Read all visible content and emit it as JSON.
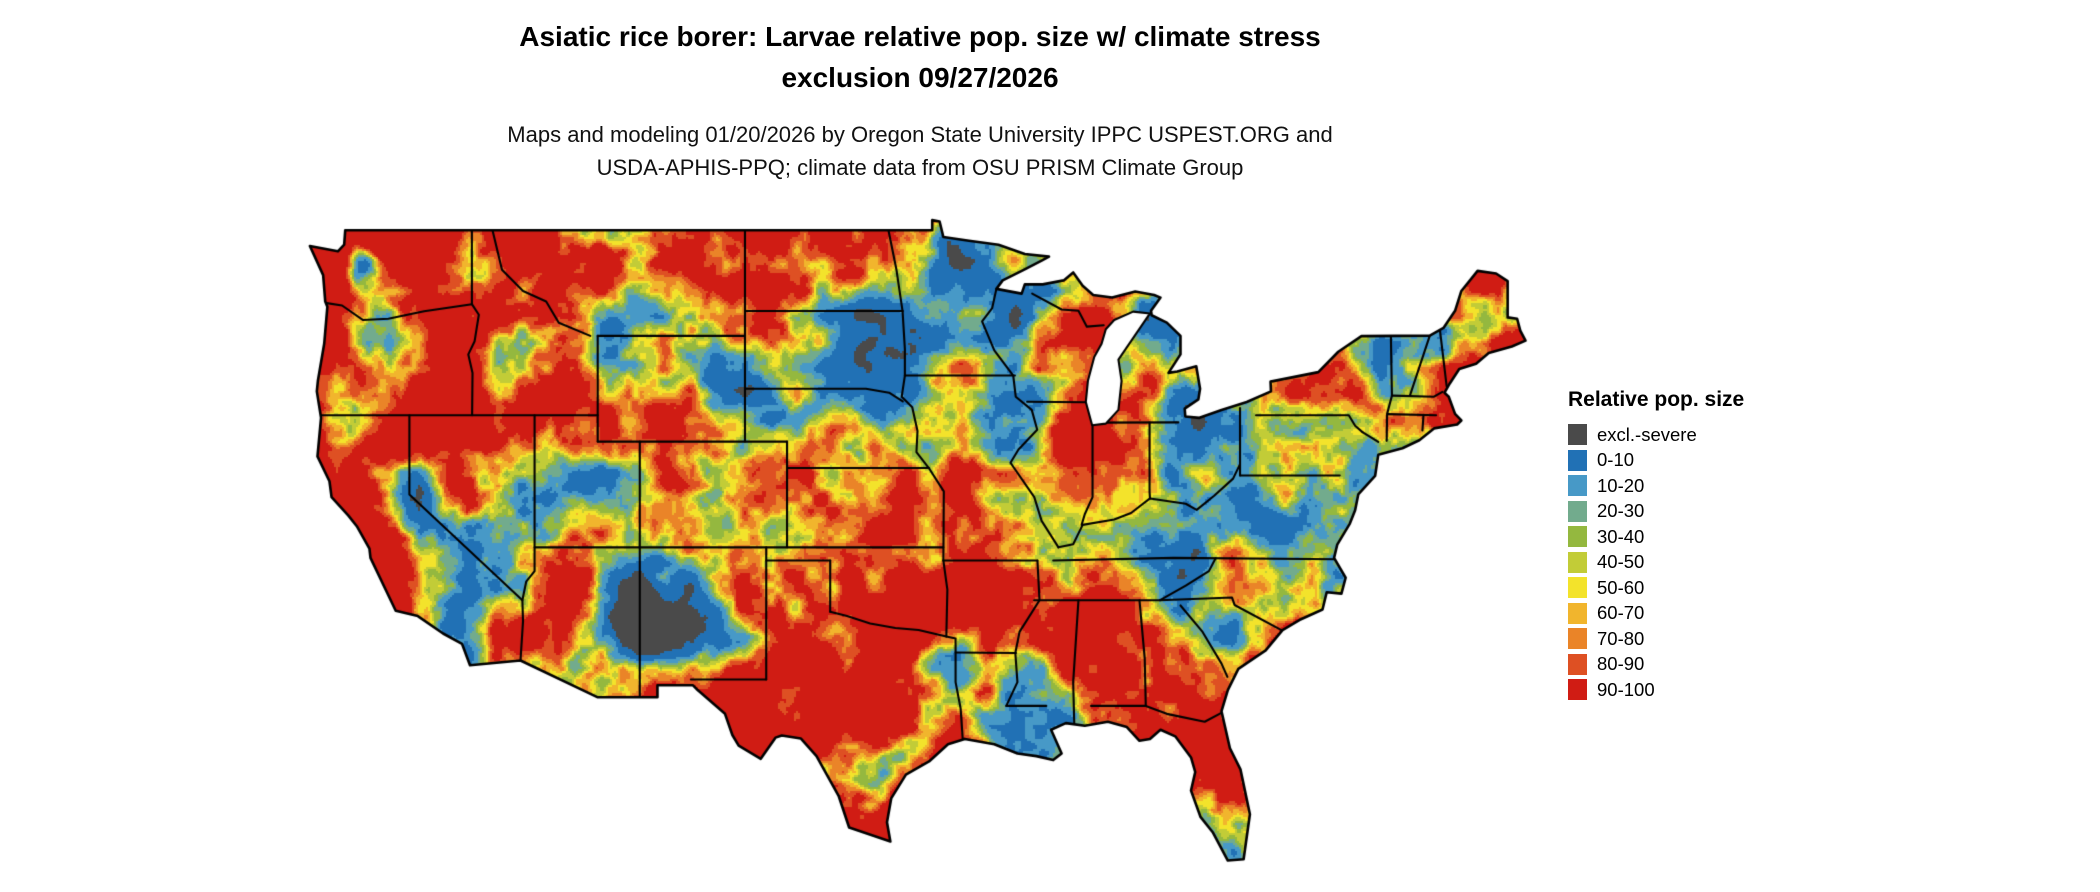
{
  "header": {
    "title_line1": "Asiatic rice borer: Larvae relative pop. size w/ climate stress",
    "title_line2": "exclusion 09/27/2026",
    "subtitle_line1": "Maps and modeling 01/20/2026 by Oregon State University IPPC USPEST.ORG and",
    "subtitle_line2": "USDA-APHIS-PPQ; climate data from OSU PRISM Climate Group"
  },
  "legend": {
    "title": "Relative pop. size",
    "items": [
      {
        "label": "excl.-severe",
        "color": "#4a4a4a"
      },
      {
        "label": "0-10",
        "color": "#2171b5"
      },
      {
        "label": "10-20",
        "color": "#4799c7"
      },
      {
        "label": "20-30",
        "color": "#72ab8d"
      },
      {
        "label": "30-40",
        "color": "#94b83f"
      },
      {
        "label": "40-50",
        "color": "#c2cc37"
      },
      {
        "label": "50-60",
        "color": "#f3e32b"
      },
      {
        "label": "60-70",
        "color": "#f1b52d"
      },
      {
        "label": "70-80",
        "color": "#ea8428"
      },
      {
        "label": "80-90",
        "color": "#de5023"
      },
      {
        "label": "90-100",
        "color": "#d01c14"
      }
    ]
  }
}
